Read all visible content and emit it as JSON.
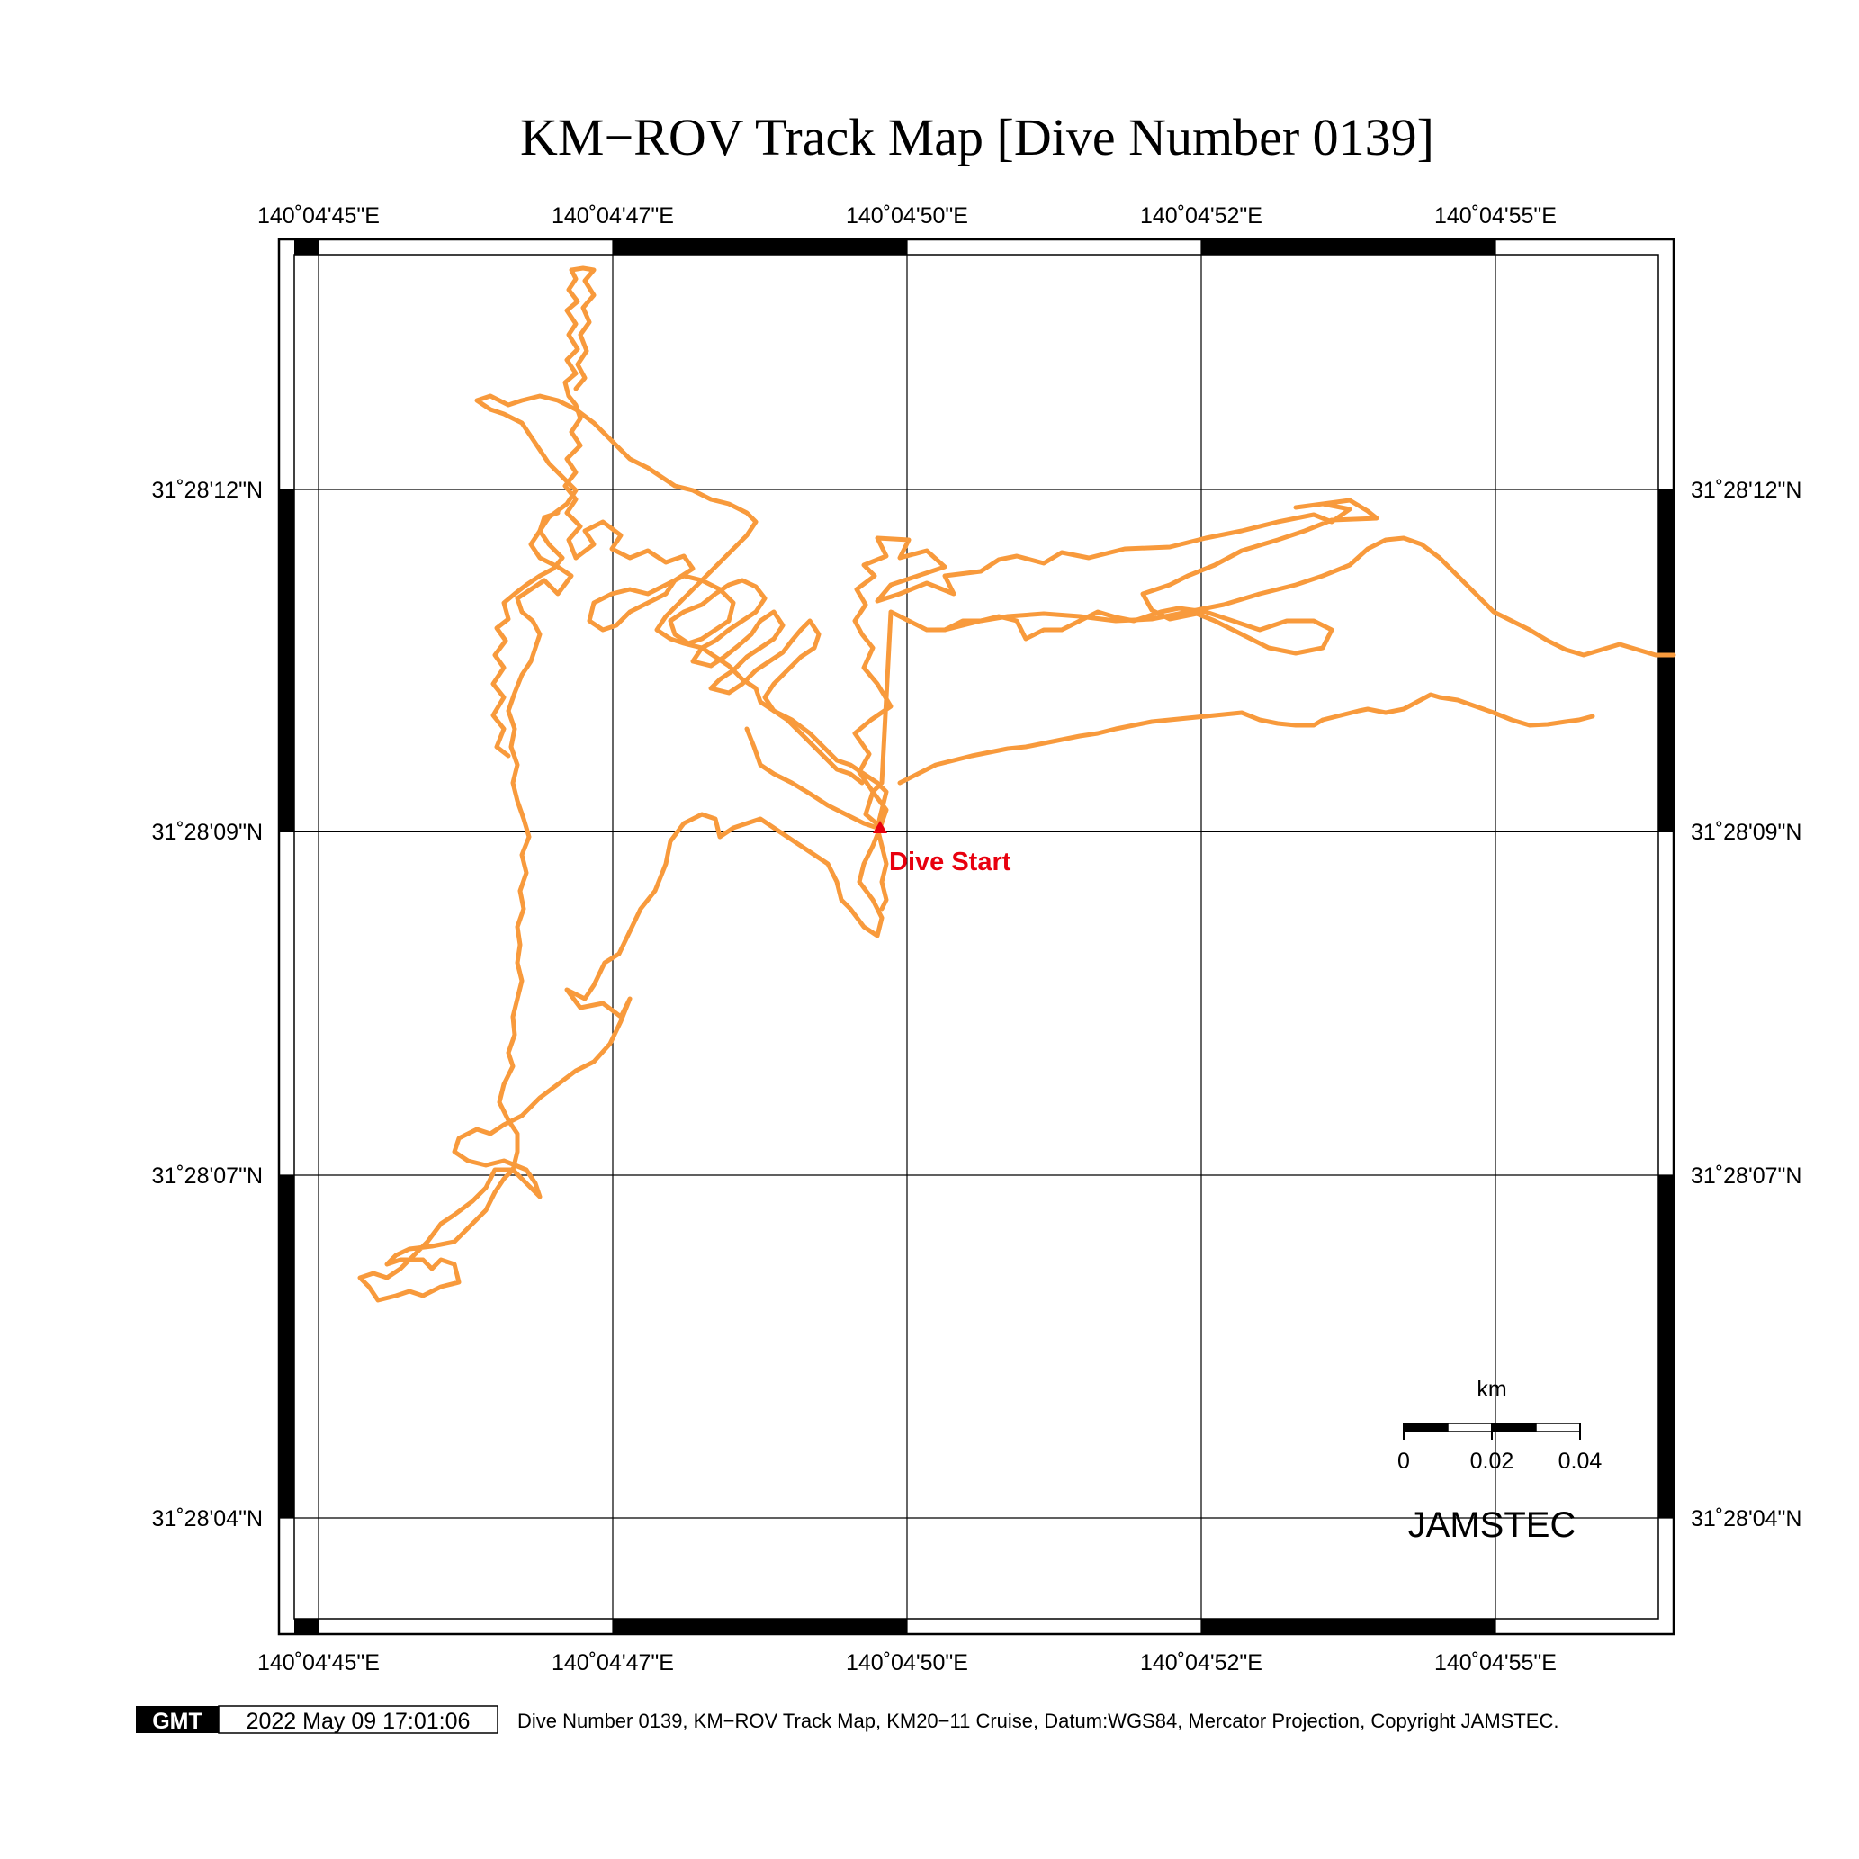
{
  "map": {
    "title": "KM−ROV Track Map [Dive Number 0139]",
    "lon_labels": [
      "140˚04'45\"E",
      "140˚04'47\"E",
      "140˚04'50\"E",
      "140˚04'52\"E",
      "140˚04'55\"E"
    ],
    "lat_labels": [
      "31˚28'12\"N",
      "31˚28'09\"N",
      "31˚28'07\"N",
      "31˚28'04\"N"
    ],
    "dive_start_label": "Dive Start",
    "scale_bar": {
      "unit": "km",
      "tick_labels": [
        "0",
        "0.02",
        "0.04"
      ]
    },
    "organization": "JAMSTEC",
    "footer": {
      "logo_text": "GMT",
      "timestamp": "2022 May 09 17:01:06",
      "caption": "Dive Number 0139, KM−ROV Track Map, KM20−11 Cruise, Datum:WGS84, Mercator Projection, Copyright JAMSTEC."
    },
    "colors": {
      "track": "#F89A3C",
      "dive_start": "#E8000E",
      "frame": "#000000",
      "grid": "#000000"
    }
  }
}
